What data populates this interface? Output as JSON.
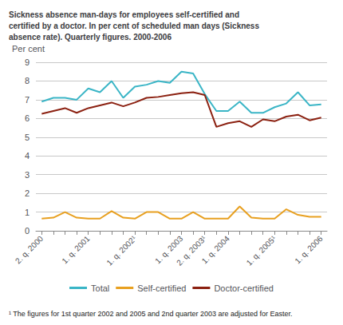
{
  "chart_data": {
    "type": "line",
    "title": "Sickness absence man-days for employees self-certified and\ncertified by a doctor. In per cent of scheduled man days (Sickness\nabsence rate). Quarterly figures. 2000-2006",
    "ylabel": "Per cent",
    "annotations": [
      "¹ The figures for 1st quarter 2002 and 2005 and 2nd quarter 2003 are adjusted for Easter."
    ],
    "categories": [
      "2. q. 2000",
      null,
      null,
      null,
      "1. q. 2001",
      null,
      null,
      null,
      "1. q. 2002¹",
      null,
      null,
      null,
      "1. q. 2003",
      null,
      "2. q. 2003¹",
      null,
      "1. q. 2004",
      null,
      null,
      null,
      "1. q. 2005¹",
      null,
      null,
      null,
      "1. q. 2006"
    ],
    "series": [
      {
        "name": "Total",
        "color": "#3ab5c6",
        "values": [
          6.9,
          7.1,
          7.1,
          7.0,
          7.6,
          7.4,
          8.0,
          7.1,
          7.7,
          7.8,
          8.0,
          7.9,
          8.5,
          8.4,
          7.3,
          6.4,
          6.4,
          6.9,
          6.3,
          6.3,
          6.6,
          6.8,
          7.4,
          6.7,
          6.75
        ]
      },
      {
        "name": "Self-certified",
        "color": "#e8a020",
        "values": [
          0.65,
          0.7,
          1.0,
          0.7,
          0.65,
          0.65,
          1.05,
          0.7,
          0.65,
          1.0,
          1.0,
          0.65,
          0.65,
          1.0,
          0.65,
          0.65,
          0.65,
          1.3,
          0.7,
          0.65,
          0.65,
          1.15,
          0.85,
          0.75,
          0.75
        ]
      },
      {
        "name": "Doctor-certified",
        "color": "#8b2010",
        "values": [
          6.25,
          6.4,
          6.55,
          6.3,
          6.55,
          6.7,
          6.85,
          6.65,
          6.85,
          7.1,
          7.15,
          7.25,
          7.35,
          7.4,
          7.25,
          5.55,
          5.75,
          5.85,
          5.55,
          5.95,
          5.85,
          6.1,
          6.2,
          5.9,
          6.05
        ]
      }
    ],
    "ylim": [
      0,
      9
    ],
    "yticks": [
      0,
      1,
      2,
      3,
      4,
      5,
      6,
      7,
      8,
      9
    ],
    "grid": true,
    "legend": "bottom"
  }
}
